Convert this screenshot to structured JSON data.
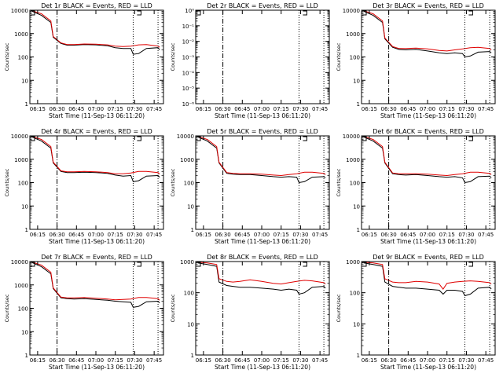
{
  "chart_data": [
    {
      "type": "line",
      "title": "Det 1r BLACK = Events, RED = LLD",
      "ylabel": "Counts/sec",
      "xlabel": "Start Time (11-Sep-13 06:11:20)",
      "y_scale": "log",
      "ylim": [
        1,
        10000
      ],
      "yticks": [
        "1",
        "10",
        "100",
        "1000",
        "10000"
      ],
      "xticks": [
        "06:15",
        "06:30",
        "06:45",
        "07:00",
        "07:15",
        "07:30",
        "07:45"
      ],
      "series": [
        {
          "color": "#000000",
          "x": [
            6.18,
            6.3,
            6.42,
            6.45,
            6.55,
            6.63,
            6.72,
            6.85,
            7.0,
            7.15,
            7.25,
            7.35,
            7.45,
            7.48,
            7.55,
            7.65,
            7.8,
            7.82
          ],
          "y": [
            9000,
            6000,
            3000,
            700,
            380,
            320,
            320,
            340,
            330,
            300,
            250,
            230,
            230,
            130,
            140,
            230,
            250,
            200
          ]
        },
        {
          "color": "#e00000",
          "x": [
            6.18,
            6.3,
            6.42,
            6.45,
            6.55,
            6.63,
            6.72,
            6.85,
            7.0,
            7.15,
            7.25,
            7.35,
            7.45,
            7.55,
            7.65,
            7.8,
            7.82
          ],
          "y": [
            9500,
            7000,
            3500,
            750,
            400,
            340,
            340,
            360,
            350,
            330,
            290,
            280,
            290,
            330,
            340,
            290,
            260
          ]
        }
      ]
    },
    {
      "type": "line",
      "title": "Det 2r BLACK = Events, RED = LLD",
      "ylabel": "Counts/sec",
      "xlabel": "Start Time (11-Sep-13 06:11:20)",
      "y_scale": "log",
      "ylim": [
        1e-06,
        1
      ],
      "yticks": [
        "10⁻⁶",
        "10⁻⁵",
        "10⁻⁴",
        "10⁻³",
        "10⁻²",
        "10⁻¹",
        "10⁰"
      ],
      "xticks": [
        "06:15",
        "06:30",
        "06:45",
        "07:00",
        "07:15",
        "07:30",
        "07:45"
      ],
      "series": []
    },
    {
      "type": "line",
      "title": "Det 3r BLACK = Events, RED = LLD",
      "ylabel": "Counts/sec",
      "xlabel": "Start Time (11-Sep-13 06:11:20)",
      "y_scale": "log",
      "ylim": [
        1,
        10000
      ],
      "yticks": [
        "1",
        "10",
        "100",
        "1000",
        "10000"
      ],
      "xticks": [
        "06:15",
        "06:30",
        "06:45",
        "07:00",
        "07:15",
        "07:30",
        "07:45"
      ],
      "series": [
        {
          "color": "#000000",
          "x": [
            6.18,
            6.3,
            6.42,
            6.45,
            6.55,
            6.63,
            6.72,
            6.85,
            7.0,
            7.15,
            7.25,
            7.35,
            7.45,
            7.48,
            7.55,
            7.65,
            7.8,
            7.82
          ],
          "y": [
            9000,
            6000,
            3000,
            600,
            260,
            210,
            200,
            210,
            180,
            150,
            140,
            150,
            140,
            100,
            110,
            160,
            170,
            150
          ]
        },
        {
          "color": "#e00000",
          "x": [
            6.18,
            6.3,
            6.42,
            6.45,
            6.55,
            6.63,
            6.72,
            6.85,
            7.0,
            7.15,
            7.25,
            7.35,
            7.45,
            7.55,
            7.65,
            7.8,
            7.82
          ],
          "y": [
            9500,
            7000,
            3500,
            650,
            280,
            230,
            230,
            240,
            220,
            190,
            180,
            200,
            220,
            250,
            260,
            230,
            200
          ]
        }
      ]
    },
    {
      "type": "line",
      "title": "Det 4r BLACK = Events, RED = LLD",
      "ylabel": "Counts/sec",
      "xlabel": "Start Time (11-Sep-13 06:11:20)",
      "y_scale": "log",
      "ylim": [
        1,
        10000
      ],
      "yticks": [
        "1",
        "10",
        "100",
        "1000",
        "10000"
      ],
      "xticks": [
        "06:15",
        "06:30",
        "06:45",
        "07:00",
        "07:15",
        "07:30",
        "07:45"
      ],
      "series": [
        {
          "color": "#000000",
          "x": [
            6.18,
            6.3,
            6.42,
            6.45,
            6.55,
            6.63,
            6.72,
            6.85,
            7.0,
            7.15,
            7.25,
            7.35,
            7.45,
            7.48,
            7.55,
            7.65,
            7.8,
            7.82
          ],
          "y": [
            9000,
            6000,
            3000,
            700,
            300,
            270,
            270,
            280,
            270,
            250,
            210,
            190,
            200,
            110,
            120,
            190,
            200,
            170
          ]
        },
        {
          "color": "#e00000",
          "x": [
            6.18,
            6.3,
            6.42,
            6.45,
            6.55,
            6.63,
            6.72,
            6.85,
            7.0,
            7.15,
            7.25,
            7.35,
            7.45,
            7.55,
            7.65,
            7.8,
            7.82
          ],
          "y": [
            9500,
            7000,
            3500,
            750,
            320,
            290,
            290,
            300,
            290,
            270,
            240,
            240,
            260,
            300,
            300,
            270,
            230
          ]
        }
      ]
    },
    {
      "type": "line",
      "title": "Det 5r BLACK = Events, RED = LLD",
      "ylabel": "Counts/sec",
      "xlabel": "Start Time (11-Sep-13 06:11:20)",
      "y_scale": "log",
      "ylim": [
        1,
        10000
      ],
      "yticks": [
        "1",
        "10",
        "100",
        "1000",
        "10000"
      ],
      "xticks": [
        "06:15",
        "06:30",
        "06:45",
        "07:00",
        "07:15",
        "07:30",
        "07:45"
      ],
      "series": [
        {
          "color": "#000000",
          "x": [
            6.18,
            6.3,
            6.42,
            6.45,
            6.55,
            6.63,
            6.72,
            6.85,
            7.0,
            7.15,
            7.25,
            7.35,
            7.45,
            7.48,
            7.55,
            7.65,
            7.8,
            7.82
          ],
          "y": [
            9000,
            6000,
            3000,
            700,
            250,
            230,
            220,
            220,
            200,
            180,
            170,
            180,
            170,
            100,
            110,
            170,
            180,
            160
          ]
        },
        {
          "color": "#e00000",
          "x": [
            6.18,
            6.3,
            6.42,
            6.45,
            6.55,
            6.63,
            6.72,
            6.85,
            7.0,
            7.15,
            7.25,
            7.35,
            7.45,
            7.55,
            7.65,
            7.8,
            7.82
          ],
          "y": [
            9500,
            7000,
            3500,
            750,
            270,
            250,
            240,
            240,
            230,
            210,
            200,
            220,
            240,
            280,
            280,
            250,
            220
          ]
        }
      ]
    },
    {
      "type": "line",
      "title": "Det 6r BLACK = Events, RED = LLD",
      "ylabel": "Counts/sec",
      "xlabel": "Start Time (11-Sep-13 06:11:20)",
      "y_scale": "log",
      "ylim": [
        1,
        10000
      ],
      "yticks": [
        "1",
        "10",
        "100",
        "1000",
        "10000"
      ],
      "xticks": [
        "06:15",
        "06:30",
        "06:45",
        "07:00",
        "07:15",
        "07:30",
        "07:45"
      ],
      "series": [
        {
          "color": "#000000",
          "x": [
            6.18,
            6.3,
            6.42,
            6.45,
            6.55,
            6.63,
            6.72,
            6.85,
            7.0,
            7.15,
            7.25,
            7.35,
            7.45,
            7.48,
            7.55,
            7.65,
            7.8,
            7.82
          ],
          "y": [
            9000,
            6000,
            3000,
            700,
            240,
            220,
            210,
            220,
            200,
            180,
            170,
            180,
            160,
            100,
            110,
            180,
            190,
            160
          ]
        },
        {
          "color": "#e00000",
          "x": [
            6.18,
            6.3,
            6.42,
            6.45,
            6.55,
            6.63,
            6.72,
            6.85,
            7.0,
            7.15,
            7.25,
            7.35,
            7.45,
            7.55,
            7.65,
            7.8,
            7.82
          ],
          "y": [
            9500,
            7000,
            3500,
            750,
            260,
            240,
            240,
            240,
            230,
            210,
            200,
            220,
            240,
            280,
            280,
            250,
            220
          ]
        }
      ]
    },
    {
      "type": "line",
      "title": "Det 7r BLACK = Events, RED = LLD",
      "ylabel": "Counts/sec",
      "xlabel": "Start Time (11-Sep-13 06:11:20)",
      "y_scale": "log",
      "ylim": [
        1,
        10000
      ],
      "yticks": [
        "1",
        "10",
        "100",
        "1000",
        "10000"
      ],
      "xticks": [
        "06:15",
        "06:30",
        "06:45",
        "07:00",
        "07:15",
        "07:30",
        "07:45"
      ],
      "series": [
        {
          "color": "#000000",
          "x": [
            6.18,
            6.3,
            6.42,
            6.45,
            6.55,
            6.63,
            6.72,
            6.85,
            7.0,
            7.15,
            7.25,
            7.35,
            7.45,
            7.48,
            7.55,
            7.65,
            7.8,
            7.82
          ],
          "y": [
            9000,
            6000,
            3000,
            700,
            280,
            260,
            250,
            260,
            240,
            220,
            200,
            190,
            180,
            110,
            120,
            190,
            200,
            170
          ]
        },
        {
          "color": "#e00000",
          "x": [
            6.18,
            6.3,
            6.42,
            6.45,
            6.55,
            6.63,
            6.72,
            6.85,
            7.0,
            7.15,
            7.25,
            7.35,
            7.45,
            7.55,
            7.65,
            7.8,
            7.82
          ],
          "y": [
            9500,
            7000,
            3500,
            750,
            300,
            280,
            280,
            290,
            270,
            250,
            230,
            240,
            250,
            290,
            290,
            260,
            220
          ]
        }
      ]
    },
    {
      "type": "line",
      "title": "Det 8r BLACK = Events, RED = LLD",
      "ylabel": "Counts/sec",
      "xlabel": "Start Time (11-Sep-13 06:11:20)",
      "y_scale": "log",
      "ylim": [
        1,
        1000
      ],
      "yticks": [
        "1",
        "10",
        "100",
        "1000"
      ],
      "xticks": [
        "06:15",
        "06:30",
        "06:45",
        "07:00",
        "07:15",
        "07:30",
        "07:45"
      ],
      "series": [
        {
          "color": "#000000",
          "x": [
            6.18,
            6.3,
            6.42,
            6.45,
            6.55,
            6.63,
            6.72,
            6.85,
            7.0,
            7.15,
            7.25,
            7.35,
            7.45,
            7.48,
            7.55,
            7.65,
            7.8,
            7.82
          ],
          "y": [
            900,
            800,
            700,
            220,
            170,
            160,
            150,
            150,
            140,
            130,
            120,
            130,
            120,
            90,
            100,
            150,
            160,
            140
          ]
        },
        {
          "color": "#e00000",
          "x": [
            6.18,
            6.3,
            6.42,
            6.45,
            6.55,
            6.63,
            6.72,
            6.85,
            7.0,
            7.15,
            7.25,
            7.35,
            7.45,
            7.55,
            7.65,
            7.8,
            7.82
          ],
          "y": [
            950,
            900,
            800,
            280,
            230,
            220,
            230,
            260,
            230,
            200,
            190,
            210,
            230,
            250,
            240,
            210,
            190
          ]
        }
      ]
    },
    {
      "type": "line",
      "title": "Det 9r BLACK = Events, RED = LLD",
      "ylabel": "Counts/sec",
      "xlabel": "Start Time (11-Sep-13 06:11:20)",
      "y_scale": "log",
      "ylim": [
        1,
        1000
      ],
      "yticks": [
        "1",
        "10",
        "100",
        "1000"
      ],
      "xticks": [
        "06:15",
        "06:30",
        "06:45",
        "07:00",
        "07:15",
        "07:30",
        "07:45"
      ],
      "series": [
        {
          "color": "#000000",
          "x": [
            6.18,
            6.3,
            6.42,
            6.45,
            6.55,
            6.63,
            6.72,
            6.85,
            7.0,
            7.15,
            7.2,
            7.25,
            7.35,
            7.45,
            7.48,
            7.55,
            7.65,
            7.8,
            7.82
          ],
          "y": [
            900,
            800,
            700,
            220,
            160,
            150,
            140,
            140,
            130,
            120,
            90,
            120,
            120,
            110,
            80,
            90,
            140,
            150,
            130
          ]
        },
        {
          "color": "#e00000",
          "x": [
            6.18,
            6.3,
            6.42,
            6.45,
            6.55,
            6.63,
            6.72,
            6.85,
            7.0,
            7.15,
            7.2,
            7.25,
            7.35,
            7.45,
            7.55,
            7.65,
            7.8,
            7.82
          ],
          "y": [
            950,
            900,
            800,
            280,
            220,
            210,
            210,
            230,
            220,
            190,
            130,
            200,
            220,
            230,
            240,
            230,
            210,
            190
          ]
        }
      ]
    }
  ]
}
